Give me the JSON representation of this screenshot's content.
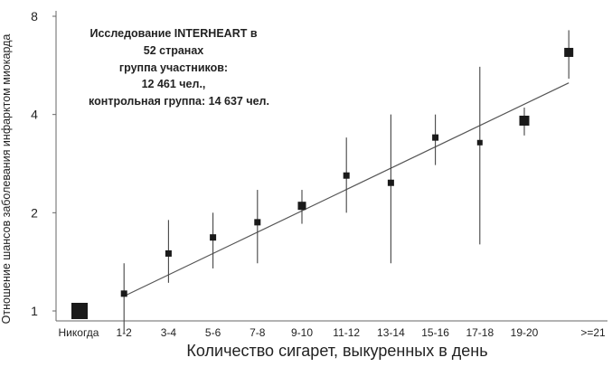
{
  "chart_data": {
    "type": "scatter",
    "y_scale": "log2",
    "ylim": [
      1,
      8
    ],
    "y_ticks": [
      1,
      2,
      4,
      8
    ],
    "y_tick_labels": [
      "1",
      "2",
      "4",
      "8"
    ],
    "xlabel": "Количество сигарет, выкуренных в день",
    "ylabel": "Отношение шансов заболевания инфарктом миокарда",
    "categories": [
      "Никогда",
      "1-2",
      "3-4",
      "5-6",
      "7-8",
      "9-10",
      "11-12",
      "13-14",
      "15-16",
      "17-18",
      "19-20",
      ">=21"
    ],
    "values": [
      1.0,
      1.13,
      1.5,
      1.68,
      1.87,
      2.1,
      2.6,
      2.47,
      3.4,
      3.28,
      3.83,
      6.2
    ],
    "ci_lower": [
      null,
      0.85,
      1.22,
      1.35,
      1.4,
      1.85,
      2.0,
      1.4,
      2.8,
      1.6,
      3.45,
      5.15
    ],
    "ci_upper": [
      null,
      1.4,
      1.9,
      2.0,
      2.35,
      2.35,
      3.4,
      4.0,
      4.0,
      5.6,
      4.2,
      7.25
    ],
    "trend_line": {
      "x_start": "1-2",
      "y_start": 1.11,
      "x_end": ">=21",
      "y_end": 5.0
    },
    "grid": false,
    "annotation": {
      "lines": [
        "Исследование INTERHEART в",
        "52 странах",
        "группа участников:",
        "12 461 чел.,",
        "контрольная группа: 14 637 чел."
      ]
    }
  }
}
